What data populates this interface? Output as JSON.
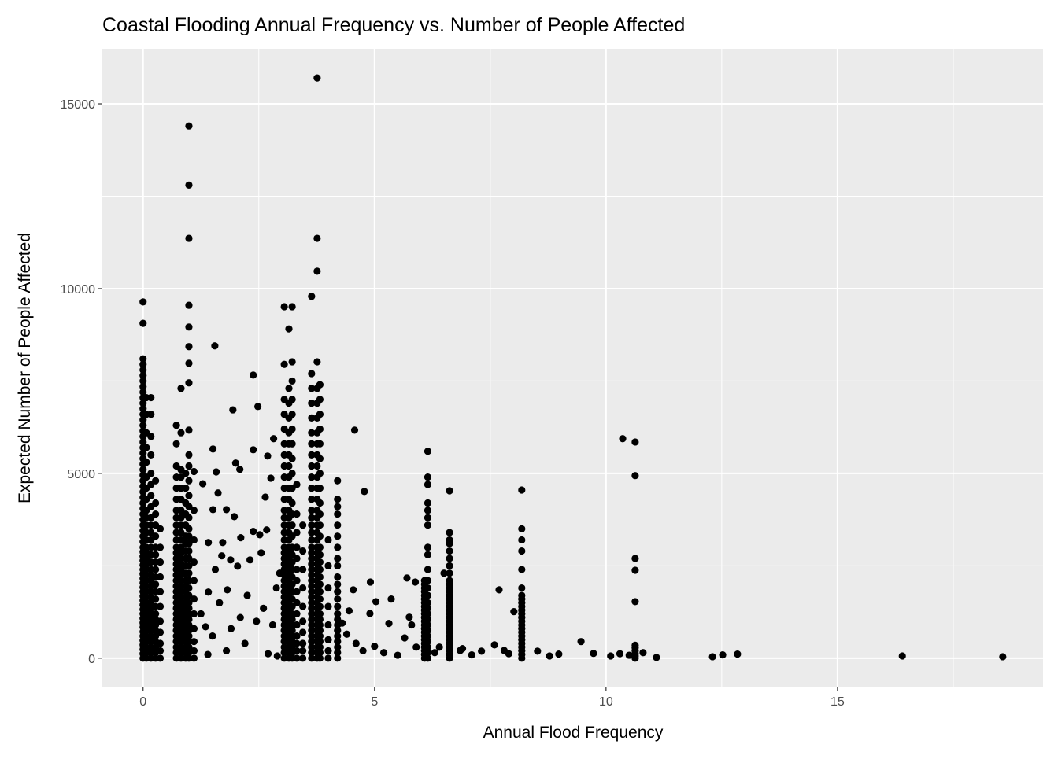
{
  "chart_data": {
    "type": "scatter",
    "title": "Coastal Flooding Annual Frequency vs. Number of People Affected",
    "xlabel": "Annual Flood Frequency",
    "ylabel": "Expected Number of People Affected",
    "xlim": [
      -0.88,
      19.44
    ],
    "ylim": [
      -770,
      16490
    ],
    "xticks": [
      0,
      5,
      10,
      15
    ],
    "xtick_labels": [
      "0",
      "5",
      "10",
      "15"
    ],
    "yticks": [
      0,
      5000,
      10000,
      15000
    ],
    "ytick_labels": [
      "0",
      "5000",
      "10000",
      "15000"
    ],
    "grid": true,
    "legend": "none",
    "point_color": "#000000",
    "panel_color": "#ebebeb",
    "columns": [
      {
        "x": 0.0,
        "y": [
          0,
          120,
          240,
          360,
          480,
          600,
          720,
          840,
          960,
          1080,
          1200,
          1320,
          1440,
          1560,
          1680,
          1800,
          1920,
          2040,
          2160,
          2280,
          2400,
          2520,
          2640,
          2760,
          2880,
          3000,
          3150,
          3300,
          3450,
          3600,
          3750,
          3900,
          4050,
          4200,
          4350,
          4500,
          4650,
          4800,
          4950,
          5100,
          5250,
          5400,
          5550,
          5700,
          5850,
          6000,
          6150,
          6300,
          6450,
          6600,
          6750,
          6900,
          7050,
          7200,
          7350,
          7500,
          7650,
          7800,
          7950,
          8100,
          9060,
          9640
        ]
      },
      {
        "x": 0.07,
        "y": [
          0,
          150,
          300,
          450,
          600,
          750,
          900,
          1050,
          1200,
          1350,
          1500,
          1650,
          1800,
          1950,
          2100,
          2250,
          2400,
          2550,
          2700,
          2850,
          3000,
          3200,
          3400,
          3600,
          3800,
          4000,
          4300,
          4600,
          4900,
          5300,
          5700,
          6100,
          6600,
          7050
        ]
      },
      {
        "x": 0.17,
        "y": [
          0,
          150,
          300,
          450,
          600,
          750,
          900,
          1050,
          1200,
          1350,
          1500,
          1650,
          1800,
          1950,
          2100,
          2250,
          2400,
          2600,
          2800,
          3000,
          3200,
          3400,
          3600,
          3800,
          4100,
          4400,
          4700,
          5000,
          5500,
          6000,
          6600,
          7050
        ]
      },
      {
        "x": 0.27,
        "y": [
          0,
          150,
          300,
          450,
          600,
          750,
          900,
          1050,
          1200,
          1400,
          1600,
          1800,
          2000,
          2200,
          2400,
          2600,
          2800,
          3000,
          3300,
          3600,
          3900,
          4200,
          4800
        ]
      },
      {
        "x": 0.37,
        "y": [
          0,
          200,
          400,
          700,
          1000,
          1400,
          1800,
          2200,
          2600,
          3000,
          3500
        ]
      },
      {
        "x": 0.72,
        "y": [
          0,
          150,
          300,
          450,
          600,
          750,
          900,
          1050,
          1200,
          1350,
          1500,
          1650,
          1800,
          1950,
          2100,
          2250,
          2400,
          2550,
          2700,
          2850,
          3000,
          3200,
          3400,
          3600,
          3800,
          4000,
          4300,
          4600,
          4900,
          5200,
          5800,
          6300
        ]
      },
      {
        "x": 0.82,
        "y": [
          0,
          150,
          300,
          450,
          600,
          750,
          900,
          1050,
          1200,
          1350,
          1500,
          1650,
          1800,
          1950,
          2100,
          2250,
          2400,
          2550,
          2700,
          2850,
          3000,
          3200,
          3400,
          3600,
          3800,
          4000,
          4300,
          4600,
          4900,
          5100,
          6100,
          7300
        ]
      },
      {
        "x": 0.92,
        "y": [
          0,
          150,
          300,
          450,
          600,
          750,
          900,
          1050,
          1200,
          1350,
          1500,
          1650,
          1800,
          1950,
          2100,
          2300,
          2500,
          2700,
          2900,
          3100,
          3300,
          3600,
          3900,
          4200,
          4600,
          5000
        ]
      },
      {
        "x": 0.99,
        "y": [
          0,
          150,
          300,
          450,
          600,
          750,
          900,
          1050,
          1200,
          1350,
          1500,
          1700,
          1900,
          2100,
          2300,
          2500,
          2700,
          2900,
          3100,
          3300,
          3500,
          3800,
          4100,
          4400,
          4800,
          5200,
          5500,
          6170,
          7450,
          7980,
          8430,
          8960,
          9550,
          11360,
          12800,
          14400
        ]
      },
      {
        "x": 1.1,
        "y": [
          0,
          200,
          450,
          800,
          1200,
          1600,
          2100,
          2600,
          3200,
          4000,
          5050
        ]
      },
      {
        "x": 3.05,
        "y": [
          0,
          150,
          300,
          450,
          600,
          750,
          900,
          1050,
          1200,
          1350,
          1500,
          1650,
          1800,
          1950,
          2100,
          2250,
          2400,
          2550,
          2700,
          2850,
          3000,
          3200,
          3400,
          3600,
          3800,
          4000,
          4300,
          4600,
          4900,
          5200,
          5500,
          5800,
          6200,
          6600,
          7000,
          7950,
          9510
        ]
      },
      {
        "x": 3.15,
        "y": [
          0,
          150,
          300,
          450,
          600,
          750,
          900,
          1050,
          1200,
          1350,
          1500,
          1650,
          1800,
          1950,
          2100,
          2250,
          2400,
          2550,
          2700,
          2850,
          3000,
          3200,
          3400,
          3600,
          3800,
          4000,
          4300,
          4600,
          4900,
          5200,
          5500,
          5800,
          6100,
          6500,
          6900,
          7300,
          8910
        ]
      },
      {
        "x": 3.22,
        "y": [
          0,
          150,
          300,
          450,
          600,
          750,
          900,
          1050,
          1200,
          1400,
          1600,
          1800,
          2000,
          2200,
          2400,
          2600,
          2800,
          3000,
          3300,
          3600,
          3900,
          4200,
          4600,
          5000,
          5400,
          5800,
          6200,
          6600,
          7000,
          7500,
          8020,
          9510
        ]
      },
      {
        "x": 3.32,
        "y": [
          0,
          200,
          400,
          600,
          900,
          1200,
          1500,
          1800,
          2100,
          2400,
          2700,
          3000,
          3400,
          3900,
          4700
        ]
      },
      {
        "x": 3.45,
        "y": [
          0,
          200,
          400,
          700,
          1000,
          1400,
          1900,
          2400,
          2900,
          3600
        ]
      },
      {
        "x": 3.64,
        "y": [
          0,
          150,
          300,
          450,
          600,
          750,
          900,
          1050,
          1200,
          1350,
          1500,
          1650,
          1800,
          1950,
          2100,
          2250,
          2400,
          2550,
          2700,
          2850,
          3000,
          3200,
          3400,
          3600,
          3800,
          4000,
          4300,
          4600,
          4900,
          5200,
          5500,
          5800,
          6100,
          6500,
          6900,
          7300,
          7700,
          9790
        ]
      },
      {
        "x": 3.76,
        "y": [
          0,
          150,
          300,
          450,
          600,
          750,
          900,
          1050,
          1200,
          1350,
          1500,
          1650,
          1800,
          1950,
          2100,
          2250,
          2400,
          2550,
          2700,
          2850,
          3000,
          3200,
          3400,
          3600,
          3800,
          4000,
          4300,
          4600,
          4900,
          5200,
          5500,
          5800,
          6100,
          6500,
          6900,
          7300,
          8020,
          10470,
          11360,
          15700
        ]
      },
      {
        "x": 3.82,
        "y": [
          0,
          150,
          300,
          450,
          600,
          750,
          900,
          1050,
          1200,
          1400,
          1600,
          1800,
          2000,
          2200,
          2400,
          2600,
          2800,
          3000,
          3300,
          3600,
          3900,
          4200,
          4600,
          5000,
          5400,
          5800,
          6200,
          6600,
          7000,
          7400
        ]
      },
      {
        "x": 4.0,
        "y": [
          0,
          200,
          500,
          900,
          1400,
          1900,
          2500,
          3200
        ]
      },
      {
        "x": 4.2,
        "y": [
          0,
          150,
          300,
          450,
          600,
          750,
          900,
          1050,
          1200,
          1400,
          1600,
          1800,
          2000,
          2200,
          2500,
          2700,
          3000,
          3300,
          3600,
          3900,
          4100,
          4300,
          4800
        ]
      },
      {
        "x": 6.08,
        "y": [
          0,
          100,
          200,
          300,
          400,
          500,
          600,
          700,
          800,
          900,
          1000,
          1100,
          1200,
          1300,
          1400,
          1500,
          1600,
          1700,
          1800,
          1900,
          2000,
          2100
        ]
      },
      {
        "x": 6.15,
        "y": [
          0,
          150,
          300,
          450,
          600,
          750,
          900,
          1050,
          1200,
          1350,
          1500,
          1700,
          1900,
          2100,
          2400,
          2800,
          3000,
          3600,
          3800,
          4000,
          4200,
          4700,
          4900,
          5600
        ]
      },
      {
        "x": 6.62,
        "y": [
          0,
          100,
          200,
          300,
          400,
          500,
          600,
          700,
          800,
          900,
          1000,
          1100,
          1200,
          1300,
          1400,
          1500,
          1600,
          1700,
          1800,
          1900,
          2000,
          2100,
          2300,
          2500,
          2700,
          2900,
          3100,
          3200,
          3400,
          4530
        ]
      },
      {
        "x": 8.18,
        "y": [
          0,
          100,
          200,
          300,
          400,
          500,
          600,
          700,
          800,
          900,
          1000,
          1100,
          1200,
          1300,
          1400,
          1500,
          1600,
          1700,
          1900,
          2400,
          2900,
          3200,
          3500,
          4550
        ]
      },
      {
        "x": 10.63,
        "y": [
          0,
          60,
          120,
          200,
          280,
          350,
          1530,
          2380,
          2700,
          4940,
          5850
        ]
      }
    ],
    "points": [
      [
        1.55,
        8450
      ],
      [
        2.38,
        7660
      ],
      [
        2.48,
        6810
      ],
      [
        1.94,
        6720
      ],
      [
        4.57,
        6170
      ],
      [
        10.36,
        5940
      ],
      [
        4.78,
        4510
      ],
      [
        1.51,
        5660
      ],
      [
        2.0,
        5280
      ],
      [
        2.09,
        5110
      ],
      [
        2.38,
        5640
      ],
      [
        2.69,
        5470
      ],
      [
        2.82,
        5940
      ],
      [
        2.76,
        4870
      ],
      [
        2.64,
        4360
      ],
      [
        1.58,
        5040
      ],
      [
        1.62,
        4470
      ],
      [
        1.29,
        4720
      ],
      [
        1.51,
        4020
      ],
      [
        1.8,
        4020
      ],
      [
        1.97,
        3830
      ],
      [
        2.38,
        3430
      ],
      [
        2.52,
        3340
      ],
      [
        2.67,
        3470
      ],
      [
        2.11,
        3260
      ],
      [
        1.72,
        3130
      ],
      [
        1.41,
        3130
      ],
      [
        1.7,
        2770
      ],
      [
        1.89,
        2660
      ],
      [
        2.31,
        2660
      ],
      [
        2.04,
        2490
      ],
      [
        1.56,
        2400
      ],
      [
        1.82,
        1850
      ],
      [
        1.41,
        1790
      ],
      [
        2.25,
        1700
      ],
      [
        2.6,
        1350
      ],
      [
        2.45,
        1000
      ],
      [
        1.25,
        1200
      ],
      [
        1.35,
        850
      ],
      [
        1.5,
        600
      ],
      [
        1.9,
        800
      ],
      [
        2.2,
        400
      ],
      [
        2.7,
        120
      ],
      [
        2.9,
        60
      ],
      [
        1.8,
        200
      ],
      [
        1.4,
        100
      ],
      [
        2.1,
        1100
      ],
      [
        2.8,
        900
      ],
      [
        2.55,
        2850
      ],
      [
        2.95,
        2300
      ],
      [
        2.88,
        1900
      ],
      [
        1.65,
        1500
      ],
      [
        4.91,
        2060
      ],
      [
        4.54,
        1850
      ],
      [
        5.03,
        1530
      ],
      [
        5.31,
        940
      ],
      [
        4.9,
        1210
      ],
      [
        5.36,
        1600
      ],
      [
        5.75,
        1110
      ],
      [
        5.7,
        2170
      ],
      [
        5.88,
        2060
      ],
      [
        4.4,
        650
      ],
      [
        4.6,
        400
      ],
      [
        4.75,
        200
      ],
      [
        5.0,
        320
      ],
      [
        5.2,
        150
      ],
      [
        5.5,
        80
      ],
      [
        5.9,
        300
      ],
      [
        5.65,
        550
      ],
      [
        4.45,
        1280
      ],
      [
        4.3,
        950
      ],
      [
        7.69,
        1850
      ],
      [
        8.01,
        1260
      ],
      [
        9.46,
        450
      ],
      [
        8.52,
        190
      ],
      [
        9.73,
        130
      ],
      [
        10.1,
        60
      ],
      [
        11.09,
        20
      ],
      [
        12.3,
        40
      ],
      [
        12.52,
        90
      ],
      [
        12.84,
        110
      ],
      [
        16.4,
        60
      ],
      [
        18.57,
        40
      ],
      [
        8.98,
        110
      ],
      [
        8.78,
        60
      ],
      [
        7.59,
        360
      ],
      [
        7.8,
        210
      ],
      [
        6.85,
        210
      ],
      [
        7.1,
        90
      ],
      [
        7.31,
        190
      ],
      [
        6.9,
        260
      ],
      [
        7.9,
        120
      ],
      [
        10.5,
        80
      ],
      [
        10.8,
        150
      ],
      [
        10.3,
        120
      ],
      [
        6.4,
        300
      ],
      [
        6.3,
        150
      ],
      [
        5.8,
        900
      ],
      [
        6.5,
        2300
      ]
    ]
  }
}
